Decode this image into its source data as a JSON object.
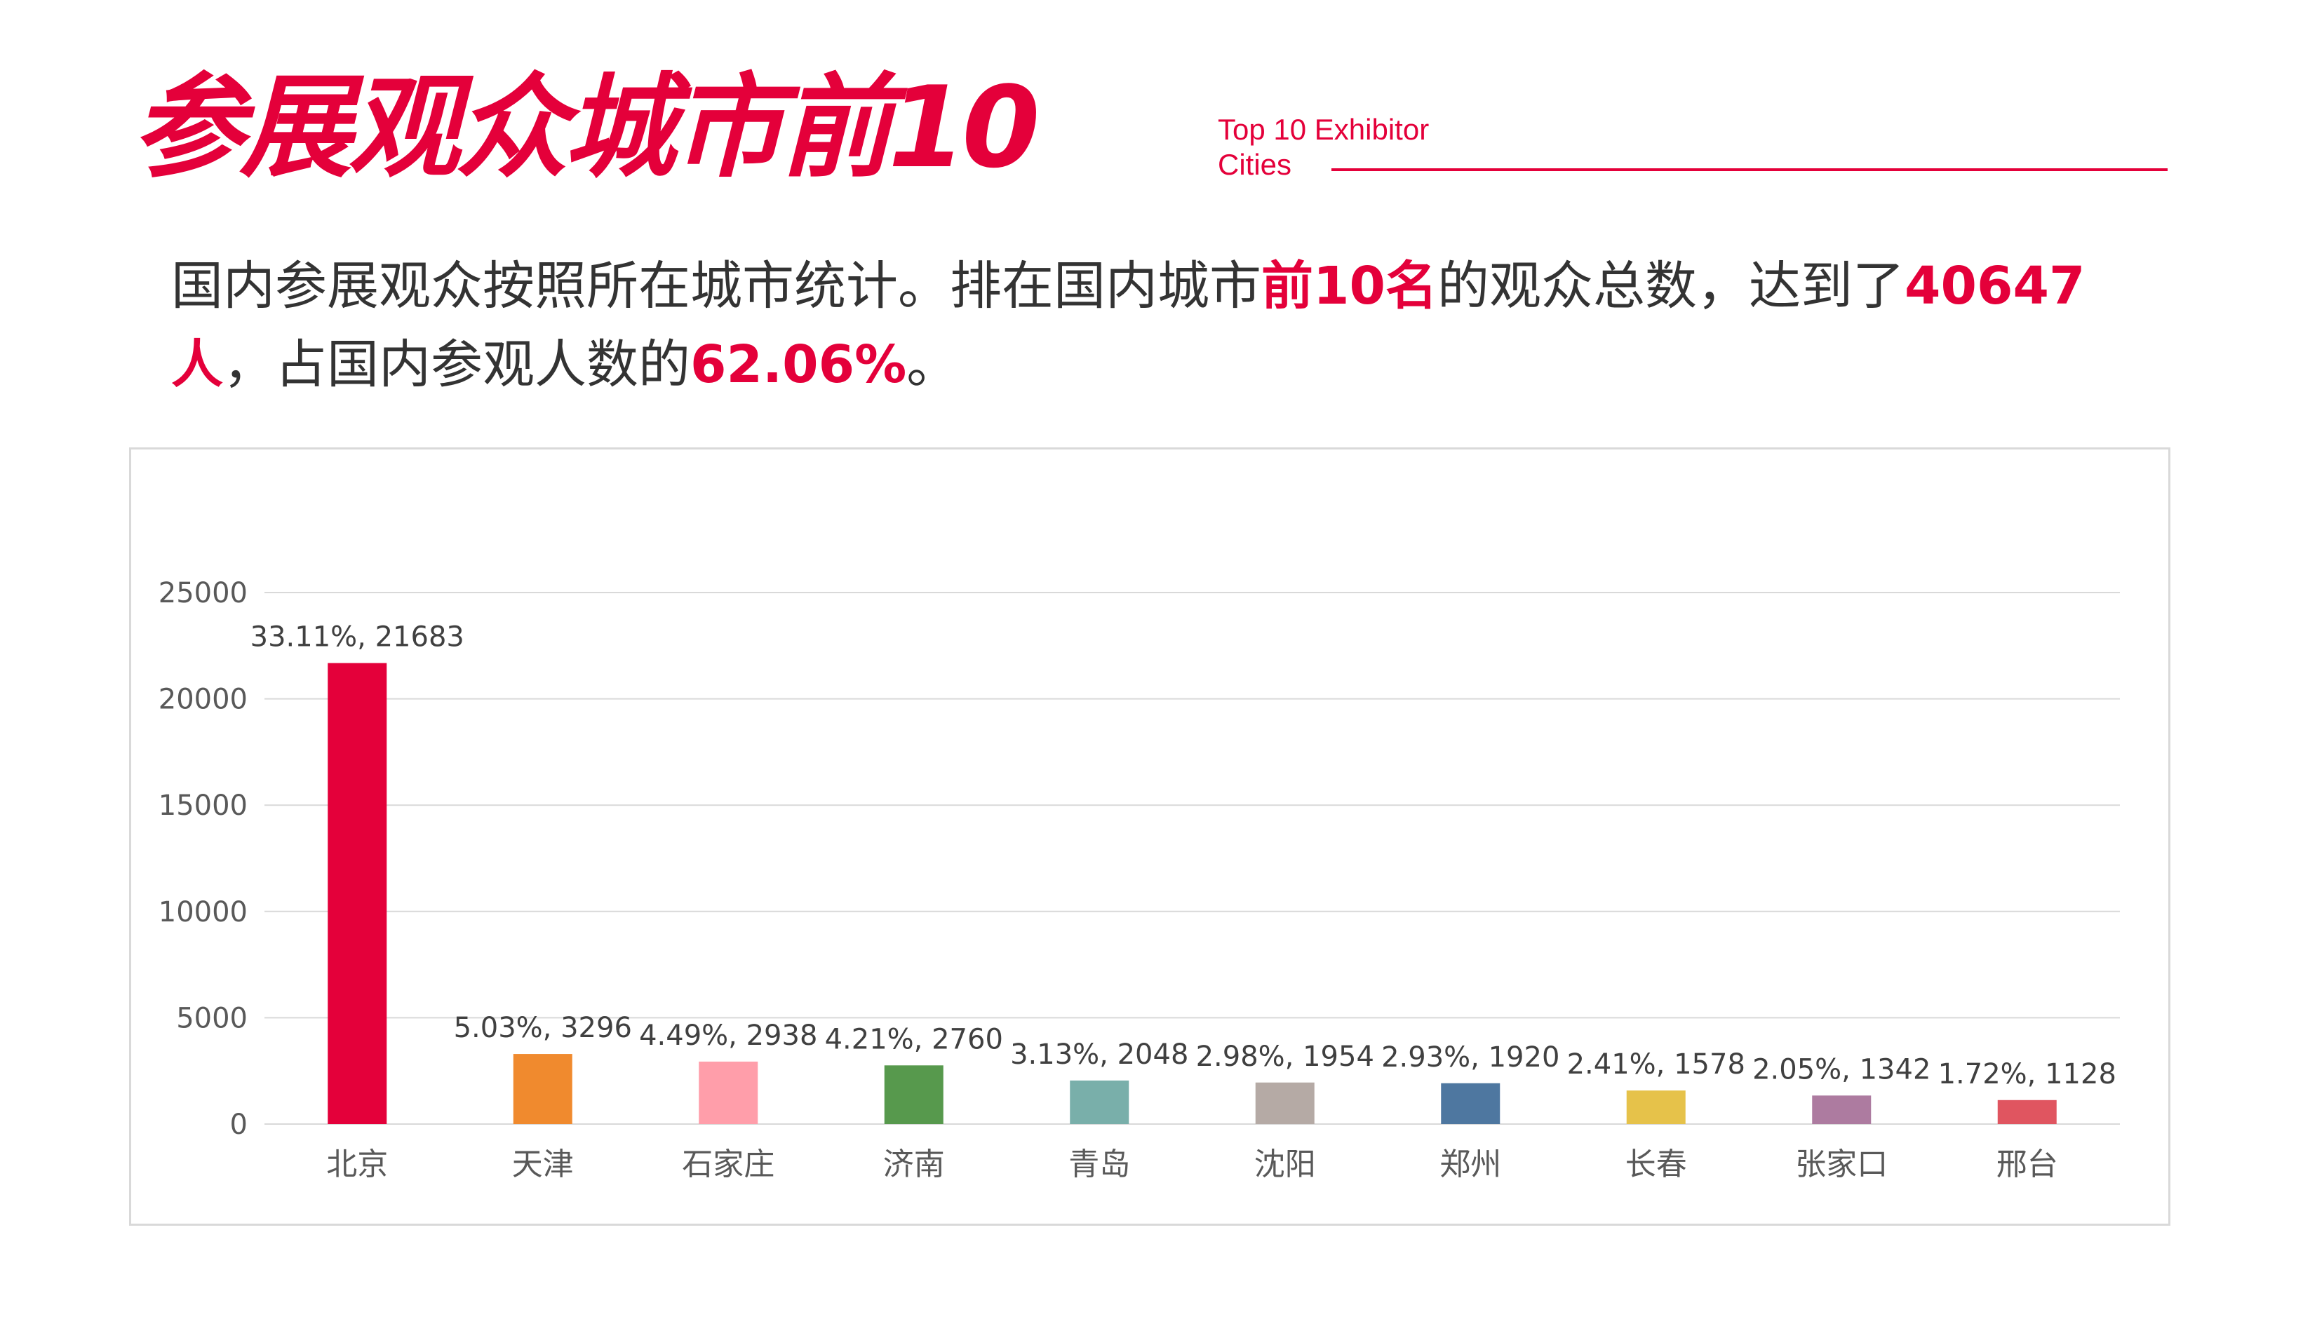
{
  "header": {
    "title": "参展观众城市前10",
    "subtitle_en": "Top 10 Exhibitor Cities"
  },
  "intro": {
    "part1": "国内参展观众按照所在城市统计。排在国内城市",
    "highlight1": "前10名",
    "part2": "的观众总数，达到了",
    "highlight2": "40647人",
    "part3": "，占国内参观人数的",
    "highlight3": "62.06%",
    "part4": "。"
  },
  "colors": {
    "accent": "#e4003a",
    "grid": "#d9d9d9",
    "axis_text": "#595959"
  },
  "chart_data": {
    "type": "bar",
    "categories": [
      "北京",
      "天津",
      "石家庄",
      "济南",
      "青岛",
      "沈阳",
      "郑州",
      "长春",
      "张家口",
      "邢台"
    ],
    "values": [
      21683,
      3296,
      2938,
      2760,
      2048,
      1954,
      1920,
      1578,
      1342,
      1128
    ],
    "percentages": [
      "33.11%",
      "5.03%",
      "4.49%",
      "4.21%",
      "3.13%",
      "2.98%",
      "2.93%",
      "2.41%",
      "2.05%",
      "1.72%"
    ],
    "data_labels": [
      "33.11%, 21683",
      "5.03%, 3296",
      "4.49%, 2938",
      "4.21%, 2760",
      "3.13%, 2048",
      "2.98%, 1954",
      "2.93%, 1920",
      "2.41%, 1578",
      "2.05%, 1342",
      "1.72%, 1128"
    ],
    "bar_colors": [
      "#e4003a",
      "#f08a2e",
      "#ff9eaa",
      "#57994d",
      "#79afaa",
      "#b5aaa5",
      "#4e77a0",
      "#e6c24a",
      "#ad7ba0",
      "#e05560"
    ],
    "y_ticks": [
      "0",
      "5000",
      "10000",
      "15000",
      "20000",
      "25000"
    ],
    "ylim": [
      0,
      25000
    ],
    "grid": true,
    "legend": "none"
  }
}
